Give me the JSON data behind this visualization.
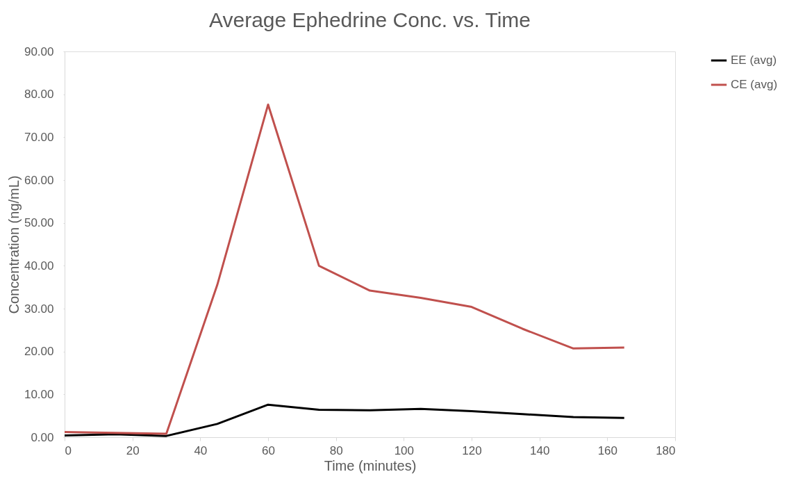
{
  "chart_data": {
    "type": "line",
    "title": "Average Ephedrine Conc. vs. Time",
    "xlabel": "Time (minutes)",
    "ylabel": "Concentration (ng/mL)",
    "x": [
      0,
      15,
      30,
      45,
      60,
      75,
      90,
      105,
      120,
      135,
      150,
      165
    ],
    "series": [
      {
        "name": "EE (avg)",
        "color": "#000000",
        "values": [
          0.4,
          0.7,
          0.3,
          3.1,
          7.6,
          6.4,
          6.3,
          6.6,
          6.1,
          5.4,
          4.7,
          4.5
        ]
      },
      {
        "name": "CE (avg)",
        "color": "#c0504d",
        "values": [
          1.2,
          1.0,
          0.8,
          35.5,
          77.6,
          40.0,
          34.2,
          32.5,
          30.4,
          25.3,
          20.7,
          20.9
        ]
      }
    ],
    "xlim": [
      0,
      180
    ],
    "xticks": [
      0,
      20,
      40,
      60,
      80,
      100,
      120,
      140,
      160,
      180
    ],
    "ylim": [
      0,
      90
    ],
    "yticks": [
      {
        "value": 0,
        "label": "0.00"
      },
      {
        "value": 10,
        "label": "10.00"
      },
      {
        "value": 20,
        "label": "20.00"
      },
      {
        "value": 30,
        "label": "30.00"
      },
      {
        "value": 40,
        "label": "40.00"
      },
      {
        "value": 50,
        "label": "50.00"
      },
      {
        "value": 60,
        "label": "60.00"
      },
      {
        "value": 70,
        "label": "70.00"
      },
      {
        "value": 80,
        "label": "80.00"
      },
      {
        "value": 90,
        "label": "90.00"
      }
    ],
    "grid": false,
    "legend": "right",
    "marker": "none",
    "line_style": "solid"
  }
}
